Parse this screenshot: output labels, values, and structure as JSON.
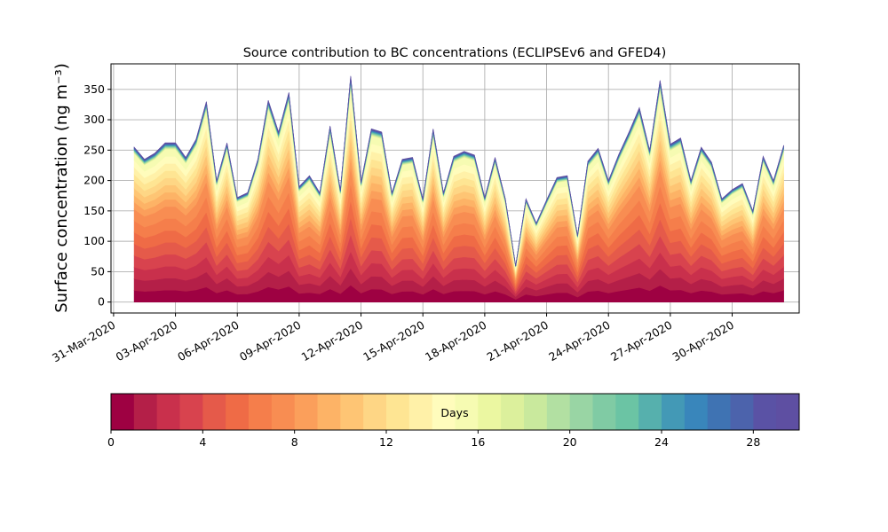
{
  "chart_data": [
    {
      "type": "area",
      "title": "Source contribution to BC concentrations (ECLIPSEv6 and GFED4)",
      "xlabel": "",
      "ylabel": "Surface concentration (ng m⁻³)",
      "stacked": true,
      "grid": true,
      "x_tick_labels": [
        "31-Mar-2020",
        "03-Apr-2020",
        "06-Apr-2020",
        "09-Apr-2020",
        "12-Apr-2020",
        "15-Apr-2020",
        "18-Apr-2020",
        "21-Apr-2020",
        "24-Apr-2020",
        "27-Apr-2020",
        "30-Apr-2020"
      ],
      "x_tick_dates": [
        "2020-03-31",
        "2020-04-03",
        "2020-04-06",
        "2020-04-09",
        "2020-04-12",
        "2020-04-15",
        "2020-04-18",
        "2020-04-21",
        "2020-04-24",
        "2020-04-27",
        "2020-04-30"
      ],
      "xlim": [
        "2020-03-30T21:00",
        "2020-05-03T06:00"
      ],
      "y_ticks": [
        0,
        50,
        100,
        150,
        200,
        250,
        300,
        350
      ],
      "ylim": [
        -18,
        392
      ],
      "total_series": {
        "name": "Total",
        "x": [
          "2020-04-01T00:00",
          "2020-04-01T12:00",
          "2020-04-02T00:00",
          "2020-04-02T12:00",
          "2020-04-03T00:00",
          "2020-04-03T12:00",
          "2020-04-04T00:00",
          "2020-04-04T12:00",
          "2020-04-05T00:00",
          "2020-04-05T12:00",
          "2020-04-06T00:00",
          "2020-04-06T12:00",
          "2020-04-07T00:00",
          "2020-04-07T12:00",
          "2020-04-08T00:00",
          "2020-04-08T12:00",
          "2020-04-09T00:00",
          "2020-04-09T12:00",
          "2020-04-10T00:00",
          "2020-04-10T12:00",
          "2020-04-11T00:00",
          "2020-04-11T12:00",
          "2020-04-12T00:00",
          "2020-04-12T12:00",
          "2020-04-13T00:00",
          "2020-04-13T12:00",
          "2020-04-14T00:00",
          "2020-04-14T12:00",
          "2020-04-15T00:00",
          "2020-04-15T12:00",
          "2020-04-16T00:00",
          "2020-04-16T12:00",
          "2020-04-17T00:00",
          "2020-04-17T12:00",
          "2020-04-18T00:00",
          "2020-04-18T12:00",
          "2020-04-19T00:00",
          "2020-04-19T12:00",
          "2020-04-20T00:00",
          "2020-04-20T12:00",
          "2020-04-21T00:00",
          "2020-04-21T12:00",
          "2020-04-22T00:00",
          "2020-04-22T12:00",
          "2020-04-23T00:00",
          "2020-04-23T12:00",
          "2020-04-24T00:00",
          "2020-04-24T12:00",
          "2020-04-25T00:00",
          "2020-04-25T12:00",
          "2020-04-26T00:00",
          "2020-04-26T12:00",
          "2020-04-27T00:00",
          "2020-04-27T12:00",
          "2020-04-28T00:00",
          "2020-04-28T12:00",
          "2020-04-29T00:00",
          "2020-04-29T12:00",
          "2020-04-30T00:00",
          "2020-04-30T12:00",
          "2020-05-01T00:00",
          "2020-05-01T12:00",
          "2020-05-02T00:00",
          "2020-05-02T12:00"
        ],
        "values": [
          255,
          235,
          245,
          262,
          262,
          238,
          268,
          330,
          200,
          262,
          172,
          180,
          235,
          332,
          280,
          345,
          190,
          208,
          180,
          290,
          185,
          372,
          198,
          285,
          280,
          180,
          235,
          238,
          170,
          285,
          180,
          240,
          248,
          242,
          172,
          238,
          170,
          60,
          170,
          130,
          168,
          205,
          208,
          110,
          232,
          253,
          200,
          243,
          280,
          320,
          250,
          365,
          260,
          270,
          200,
          255,
          230,
          170,
          185,
          195,
          150,
          240,
          200,
          258
        ]
      },
      "colorbar": {
        "label": "Days",
        "range": [
          0,
          30
        ],
        "n_colors": 30,
        "tick_values": [
          0,
          4,
          8,
          12,
          16,
          20,
          24,
          28
        ],
        "colormap": "Spectral",
        "colors": [
          "#9e0142",
          "#b41f48",
          "#c9304c",
          "#d8434e",
          "#e55a4a",
          "#ef6b46",
          "#f57e4b",
          "#f88d52",
          "#fb9f5b",
          "#fdb366",
          "#fec574",
          "#fed685",
          "#fee593",
          "#fff1a8",
          "#fffcbc",
          "#f6fbb2",
          "#ebf7a1",
          "#dcf09c",
          "#c9e99d",
          "#b2e0a2",
          "#99d5a4",
          "#80cba4",
          "#6bc4a4",
          "#56b0ad",
          "#4399b6",
          "#3986bb",
          "#3f73b3",
          "#4c63ac",
          "#5a52a5",
          "#5e4fa2"
        ]
      }
    }
  ]
}
